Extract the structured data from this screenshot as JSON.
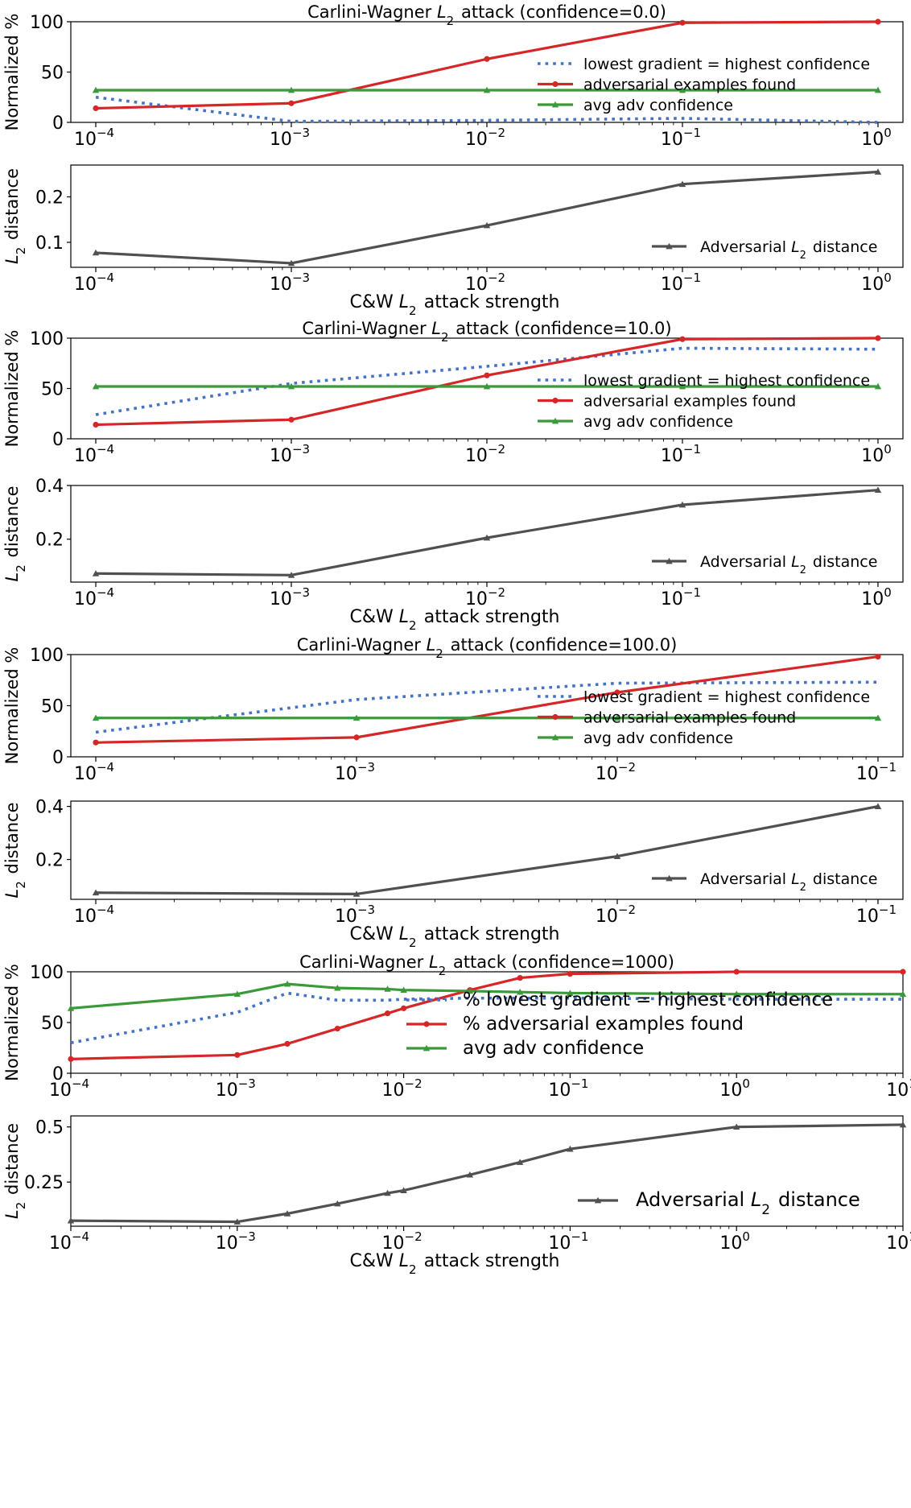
{
  "colors": {
    "red": "#d62728",
    "blue": "#4472c4",
    "green": "#3a9a3a",
    "gray": "#505050"
  },
  "strength_label": "C&W L2 attack strength",
  "chart_data": [
    {
      "type": "line",
      "title": "Carlini-Wagner L2 attack (confidence=0.0)",
      "ylabel": "Normalized %",
      "xscale": "log",
      "xlim": [
        0.0001,
        1
      ],
      "ylim": [
        0,
        100
      ],
      "yticks": [
        0,
        50,
        100
      ],
      "legend": "right",
      "x": [
        0.0001,
        0.001,
        0.01,
        0.1,
        1
      ],
      "series": [
        {
          "name": "lowest gradient = highest confidence",
          "color": "blue",
          "style": "dotted",
          "marker": "none",
          "values": [
            25,
            1,
            2,
            4,
            0
          ]
        },
        {
          "name": "adversarial examples found",
          "color": "red",
          "style": "solid",
          "marker": "dot",
          "values": [
            14,
            19,
            63,
            99,
            100
          ]
        },
        {
          "name": "avg adv confidence",
          "color": "green",
          "style": "solid",
          "marker": "tri",
          "values": [
            32,
            32,
            32,
            32,
            32
          ]
        }
      ]
    },
    {
      "type": "line",
      "ylabel": "L2 distance",
      "xlabel": "C&W L2 attack strength",
      "xscale": "log",
      "xlim": [
        0.0001,
        1
      ],
      "ylim": [
        0.045,
        0.27
      ],
      "yticks": [
        0.1,
        0.2
      ],
      "legend": "lower right",
      "x": [
        0.0001,
        0.001,
        0.01,
        0.1,
        1
      ],
      "series": [
        {
          "name": "Adversarial L2 distance",
          "color": "gray",
          "style": "solid",
          "marker": "tri",
          "values": [
            0.077,
            0.054,
            0.137,
            0.228,
            0.255
          ]
        }
      ]
    },
    {
      "type": "line",
      "title": "Carlini-Wagner L2 attack (confidence=10.0)",
      "ylabel": "Normalized %",
      "xscale": "log",
      "xlim": [
        0.0001,
        1
      ],
      "ylim": [
        0,
        100
      ],
      "yticks": [
        0,
        50,
        100
      ],
      "legend": "right",
      "x": [
        0.0001,
        0.001,
        0.01,
        0.1,
        1
      ],
      "series": [
        {
          "name": "lowest gradient = highest confidence",
          "color": "blue",
          "style": "dotted",
          "marker": "none",
          "values": [
            24,
            55,
            72,
            90,
            89
          ]
        },
        {
          "name": "adversarial examples found",
          "color": "red",
          "style": "solid",
          "marker": "dot",
          "values": [
            14,
            19,
            63,
            99,
            100
          ]
        },
        {
          "name": "avg adv confidence",
          "color": "green",
          "style": "solid",
          "marker": "tri",
          "values": [
            52,
            52,
            52,
            52,
            52
          ]
        }
      ]
    },
    {
      "type": "line",
      "ylabel": "L2 distance",
      "xlabel": "C&W L2 attack strength",
      "xscale": "log",
      "xlim": [
        0.0001,
        1
      ],
      "ylim": [
        0.04,
        0.4
      ],
      "yticks": [
        0.2,
        0.4
      ],
      "legend": "lower right",
      "x": [
        0.0001,
        0.001,
        0.01,
        0.1,
        1
      ],
      "series": [
        {
          "name": "Adversarial L2 distance",
          "color": "gray",
          "style": "solid",
          "marker": "tri",
          "values": [
            0.072,
            0.066,
            0.205,
            0.328,
            0.383
          ]
        }
      ]
    },
    {
      "type": "line",
      "title": "Carlini-Wagner L2 attack (confidence=100.0)",
      "ylabel": "Normalized %",
      "xscale": "log",
      "xlim": [
        0.0001,
        0.1
      ],
      "ylim": [
        0,
        100
      ],
      "yticks": [
        0,
        50,
        100
      ],
      "legend": "right",
      "x": [
        0.0001,
        0.001,
        0.01,
        0.1
      ],
      "series": [
        {
          "name": "lowest gradient = highest confidence",
          "color": "blue",
          "style": "dotted",
          "marker": "none",
          "values": [
            24,
            56,
            72,
            73
          ]
        },
        {
          "name": "adversarial examples found",
          "color": "red",
          "style": "solid",
          "marker": "dot",
          "values": [
            14,
            19,
            63,
            98
          ]
        },
        {
          "name": "avg adv confidence",
          "color": "green",
          "style": "solid",
          "marker": "tri",
          "values": [
            38,
            38,
            38,
            38
          ]
        }
      ]
    },
    {
      "type": "line",
      "ylabel": "L2 distance",
      "xlabel": "C&W L2 attack strength",
      "xscale": "log",
      "xlim": [
        0.0001,
        0.1
      ],
      "ylim": [
        0.05,
        0.42
      ],
      "yticks": [
        0.2,
        0.4
      ],
      "legend": "lower right",
      "x": [
        0.0001,
        0.001,
        0.01,
        0.1
      ],
      "series": [
        {
          "name": "Adversarial L2 distance",
          "color": "gray",
          "style": "solid",
          "marker": "tri",
          "values": [
            0.075,
            0.07,
            0.212,
            0.4
          ]
        }
      ]
    },
    {
      "type": "line",
      "title": "Carlini-Wagner L2 attack (confidence=1000)",
      "ylabel": "Normalized %",
      "xscale": "log",
      "xlim": [
        0.0001,
        10
      ],
      "ylim": [
        0,
        100
      ],
      "yticks": [
        0,
        50,
        100
      ],
      "legend": "right",
      "x": [
        0.0001,
        0.001,
        0.002,
        0.004,
        0.008,
        0.01,
        0.025,
        0.05,
        0.1,
        1,
        10
      ],
      "series": [
        {
          "name": "% lowest gradient = highest confidence",
          "color": "blue",
          "style": "dotted",
          "marker": "none",
          "values": [
            30,
            60,
            79,
            72,
            72,
            73,
            74,
            74,
            74,
            73,
            73
          ]
        },
        {
          "name": "% adversarial examples found",
          "color": "red",
          "style": "solid",
          "marker": "dot",
          "values": [
            14,
            18,
            29,
            44,
            59,
            64,
            82,
            94,
            98,
            100,
            100
          ]
        },
        {
          "name": "avg adv confidence",
          "color": "green",
          "style": "solid",
          "marker": "tri",
          "values": [
            64,
            78,
            88,
            84,
            83,
            82,
            81,
            80,
            79,
            78,
            78
          ]
        }
      ]
    },
    {
      "type": "line",
      "ylabel": "L2 distance",
      "xlabel": "C&W L2 attack strength",
      "xscale": "log",
      "xlim": [
        0.0001,
        10
      ],
      "ylim": [
        0.05,
        0.55
      ],
      "yticks": [
        0.25,
        0.5
      ],
      "legend": "lower right",
      "x": [
        0.0001,
        0.001,
        0.002,
        0.004,
        0.008,
        0.01,
        0.025,
        0.05,
        0.1,
        1,
        10
      ],
      "series": [
        {
          "name": "Adversarial L2 distance",
          "color": "gray",
          "style": "solid",
          "marker": "tri",
          "values": [
            0.075,
            0.07,
            0.107,
            0.152,
            0.2,
            0.212,
            0.283,
            0.34,
            0.4,
            0.5,
            0.51
          ]
        }
      ]
    }
  ]
}
